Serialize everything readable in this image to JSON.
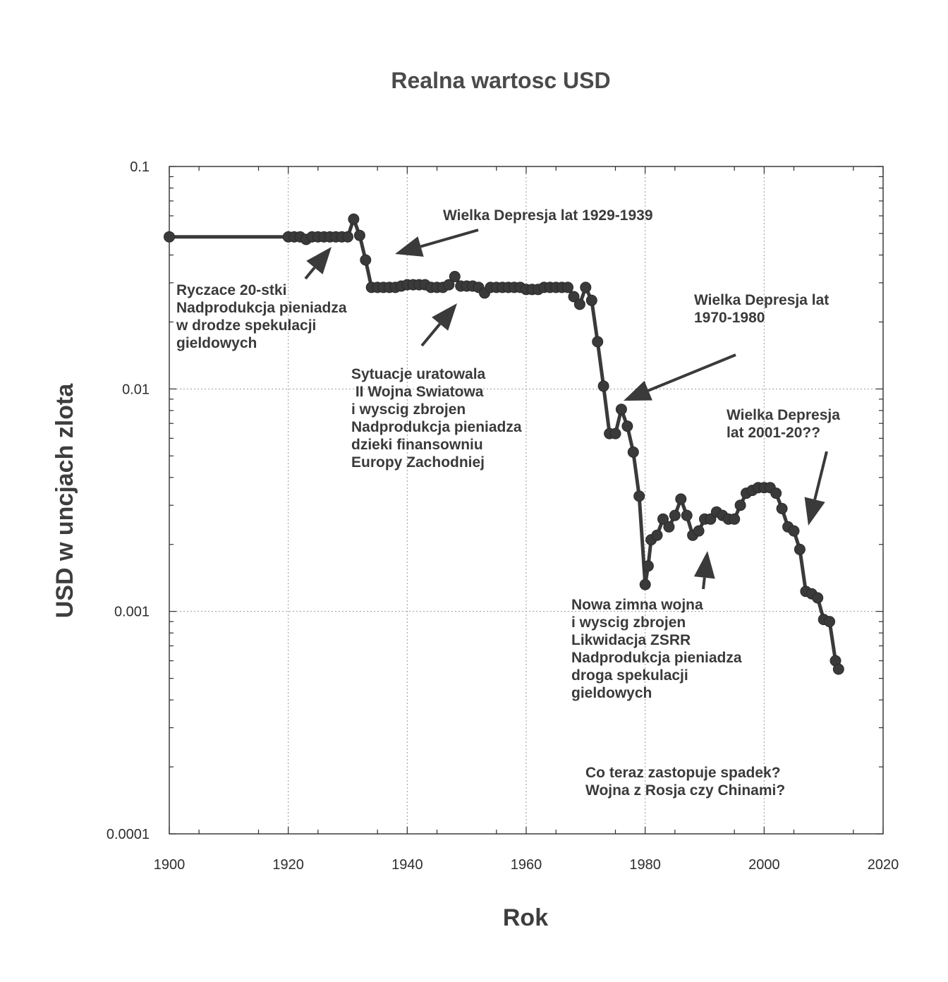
{
  "chart_data": {
    "type": "line",
    "title": "Realna wartosc USD",
    "xlabel": "Rok",
    "ylabel": "USD w uncjach zlota",
    "xlim": [
      1900,
      2020
    ],
    "ylim": [
      0.0001,
      0.1
    ],
    "yscale": "log",
    "grid": true,
    "x_ticks": [
      "1900",
      "1920",
      "1940",
      "1960",
      "1980",
      "2000",
      "2020"
    ],
    "y_ticks": [
      "0.1",
      "0.01",
      "0.001",
      "0.0001"
    ],
    "series": [
      {
        "x": [
          1900,
          1920,
          1921,
          1922,
          1923,
          1924,
          1925,
          1926,
          1927,
          1928,
          1929,
          1930,
          1931,
          1932,
          1933,
          1934,
          1935,
          1936,
          1937,
          1938,
          1939,
          1940,
          1941,
          1942,
          1943,
          1944,
          1945,
          1946,
          1947,
          1948,
          1949,
          1950,
          1951,
          1952,
          1953,
          1954,
          1955,
          1956,
          1957,
          1958,
          1959,
          1960,
          1961,
          1962,
          1963,
          1964,
          1965,
          1966,
          1967,
          1968,
          1969,
          1970,
          1971,
          1972,
          1973,
          1974,
          1975,
          1976,
          1977,
          1978,
          1979,
          1980,
          1980.5,
          1981,
          1982,
          1983,
          1984,
          1985,
          1986,
          1987,
          1988,
          1989,
          1990,
          1991,
          1992,
          1993,
          1994,
          1995,
          1996,
          1997,
          1998,
          1999,
          2000,
          2001,
          2002,
          2003,
          2004,
          2005,
          2006,
          2007,
          2008,
          2009,
          2010,
          2011,
          2012,
          2012.5
        ],
        "y": [
          0.0483,
          0.0483,
          0.0483,
          0.0483,
          0.047,
          0.0483,
          0.0483,
          0.0483,
          0.0483,
          0.0483,
          0.0483,
          0.0483,
          0.058,
          0.049,
          0.038,
          0.0286,
          0.0286,
          0.0286,
          0.0286,
          0.0286,
          0.029,
          0.0294,
          0.0294,
          0.0294,
          0.0294,
          0.0286,
          0.0286,
          0.0286,
          0.0294,
          0.032,
          0.029,
          0.029,
          0.029,
          0.0286,
          0.027,
          0.0286,
          0.0286,
          0.0286,
          0.0286,
          0.0286,
          0.0286,
          0.028,
          0.028,
          0.028,
          0.0286,
          0.0286,
          0.0286,
          0.0286,
          0.0286,
          0.026,
          0.024,
          0.0286,
          0.025,
          0.0163,
          0.0103,
          0.0063,
          0.0063,
          0.0081,
          0.0068,
          0.0052,
          0.0033,
          0.00132,
          0.0016,
          0.0021,
          0.0022,
          0.0026,
          0.0024,
          0.0027,
          0.0032,
          0.0027,
          0.0022,
          0.0023,
          0.0026,
          0.0026,
          0.0028,
          0.0027,
          0.0026,
          0.0026,
          0.003,
          0.0034,
          0.0035,
          0.0036,
          0.0036,
          0.0036,
          0.0034,
          0.0029,
          0.0024,
          0.0023,
          0.0019,
          0.00123,
          0.0012,
          0.00115,
          0.00092,
          0.0009,
          0.0006,
          0.00055
        ]
      }
    ],
    "annotations": [
      {
        "lines": [
          "Wielka Depresja  lat 1929-1939"
        ]
      },
      {
        "lines": [
          "Ryczace 20-stki",
          "Nadprodukcja pieniadza",
          "w drodze spekulacji",
          "gieldowych"
        ]
      },
      {
        "lines": [
          "Sytuacje uratowala",
          " II Wojna Swiatowa",
          "i wyscig zbrojen",
          "Nadprodukcja pieniadza",
          "dzieki finansowniu",
          "Europy Zachodniej"
        ]
      },
      {
        "lines": [
          "Wielka Depresja lat",
          "1970-1980"
        ]
      },
      {
        "lines": [
          "Wielka Depresja",
          "lat 2001-20??"
        ]
      },
      {
        "lines": [
          "Nowa zimna wojna",
          "i wyscig zbrojen",
          "Likwidacja ZSRR",
          "Nadprodukcja pieniadza",
          "droga spekulacji",
          "gieldowych"
        ]
      },
      {
        "lines": [
          "Co teraz zastopuje spadek?",
          "Wojna z Rosja czy Chinami?"
        ]
      }
    ]
  }
}
